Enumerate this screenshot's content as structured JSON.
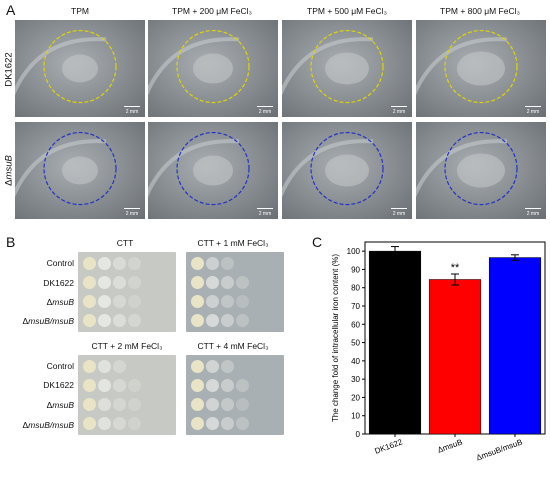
{
  "panels": {
    "a": "A",
    "b": "B",
    "c": "C"
  },
  "panel_a": {
    "columns": [
      "TPM",
      "TPM + 200 μM FeCl₃",
      "TPM + 500 μM FeCl₃",
      "TPM + 800 μM FeCl₃"
    ],
    "rows": [
      {
        "label_prefix": "DK1622",
        "label_italic": "",
        "circle_color": "#e0d400"
      },
      {
        "label_prefix": "Δ",
        "label_italic": "msuB",
        "circle_color": "#2232c8"
      }
    ],
    "scale_label": "2 mm"
  },
  "panel_b": {
    "plates": [
      {
        "title": "CTT"
      },
      {
        "title": "CTT + 1 mM FeCl₃"
      },
      {
        "title": "CTT + 2 mM FeCl₃"
      },
      {
        "title": "CTT + 4 mM FeCl₃"
      }
    ],
    "strains": [
      {
        "prefix": "Control",
        "italic": "",
        "suffix": ""
      },
      {
        "prefix": "DK1622",
        "italic": "",
        "suffix": ""
      },
      {
        "prefix": "Δ",
        "italic": "msuB",
        "suffix": ""
      },
      {
        "prefix": "Δ",
        "italic": "msuB/msuB",
        "suffix": ""
      }
    ]
  },
  "chart_data": {
    "type": "bar",
    "categories": [
      "DK1622",
      "ΔmsuB",
      "ΔmsuB/msuB"
    ],
    "values": [
      100,
      84.5,
      96.5
    ],
    "errors": [
      2.5,
      3.0,
      1.5
    ],
    "colors": [
      "#000000",
      "#ff0000",
      "#0000ff"
    ],
    "significance": [
      "",
      "**",
      ""
    ],
    "ylabel": "The change fold of intracellular iron content (%)",
    "ylim": [
      0,
      105
    ],
    "yticks": [
      0,
      10,
      20,
      30,
      40,
      50,
      60,
      70,
      80,
      90,
      100
    ]
  }
}
